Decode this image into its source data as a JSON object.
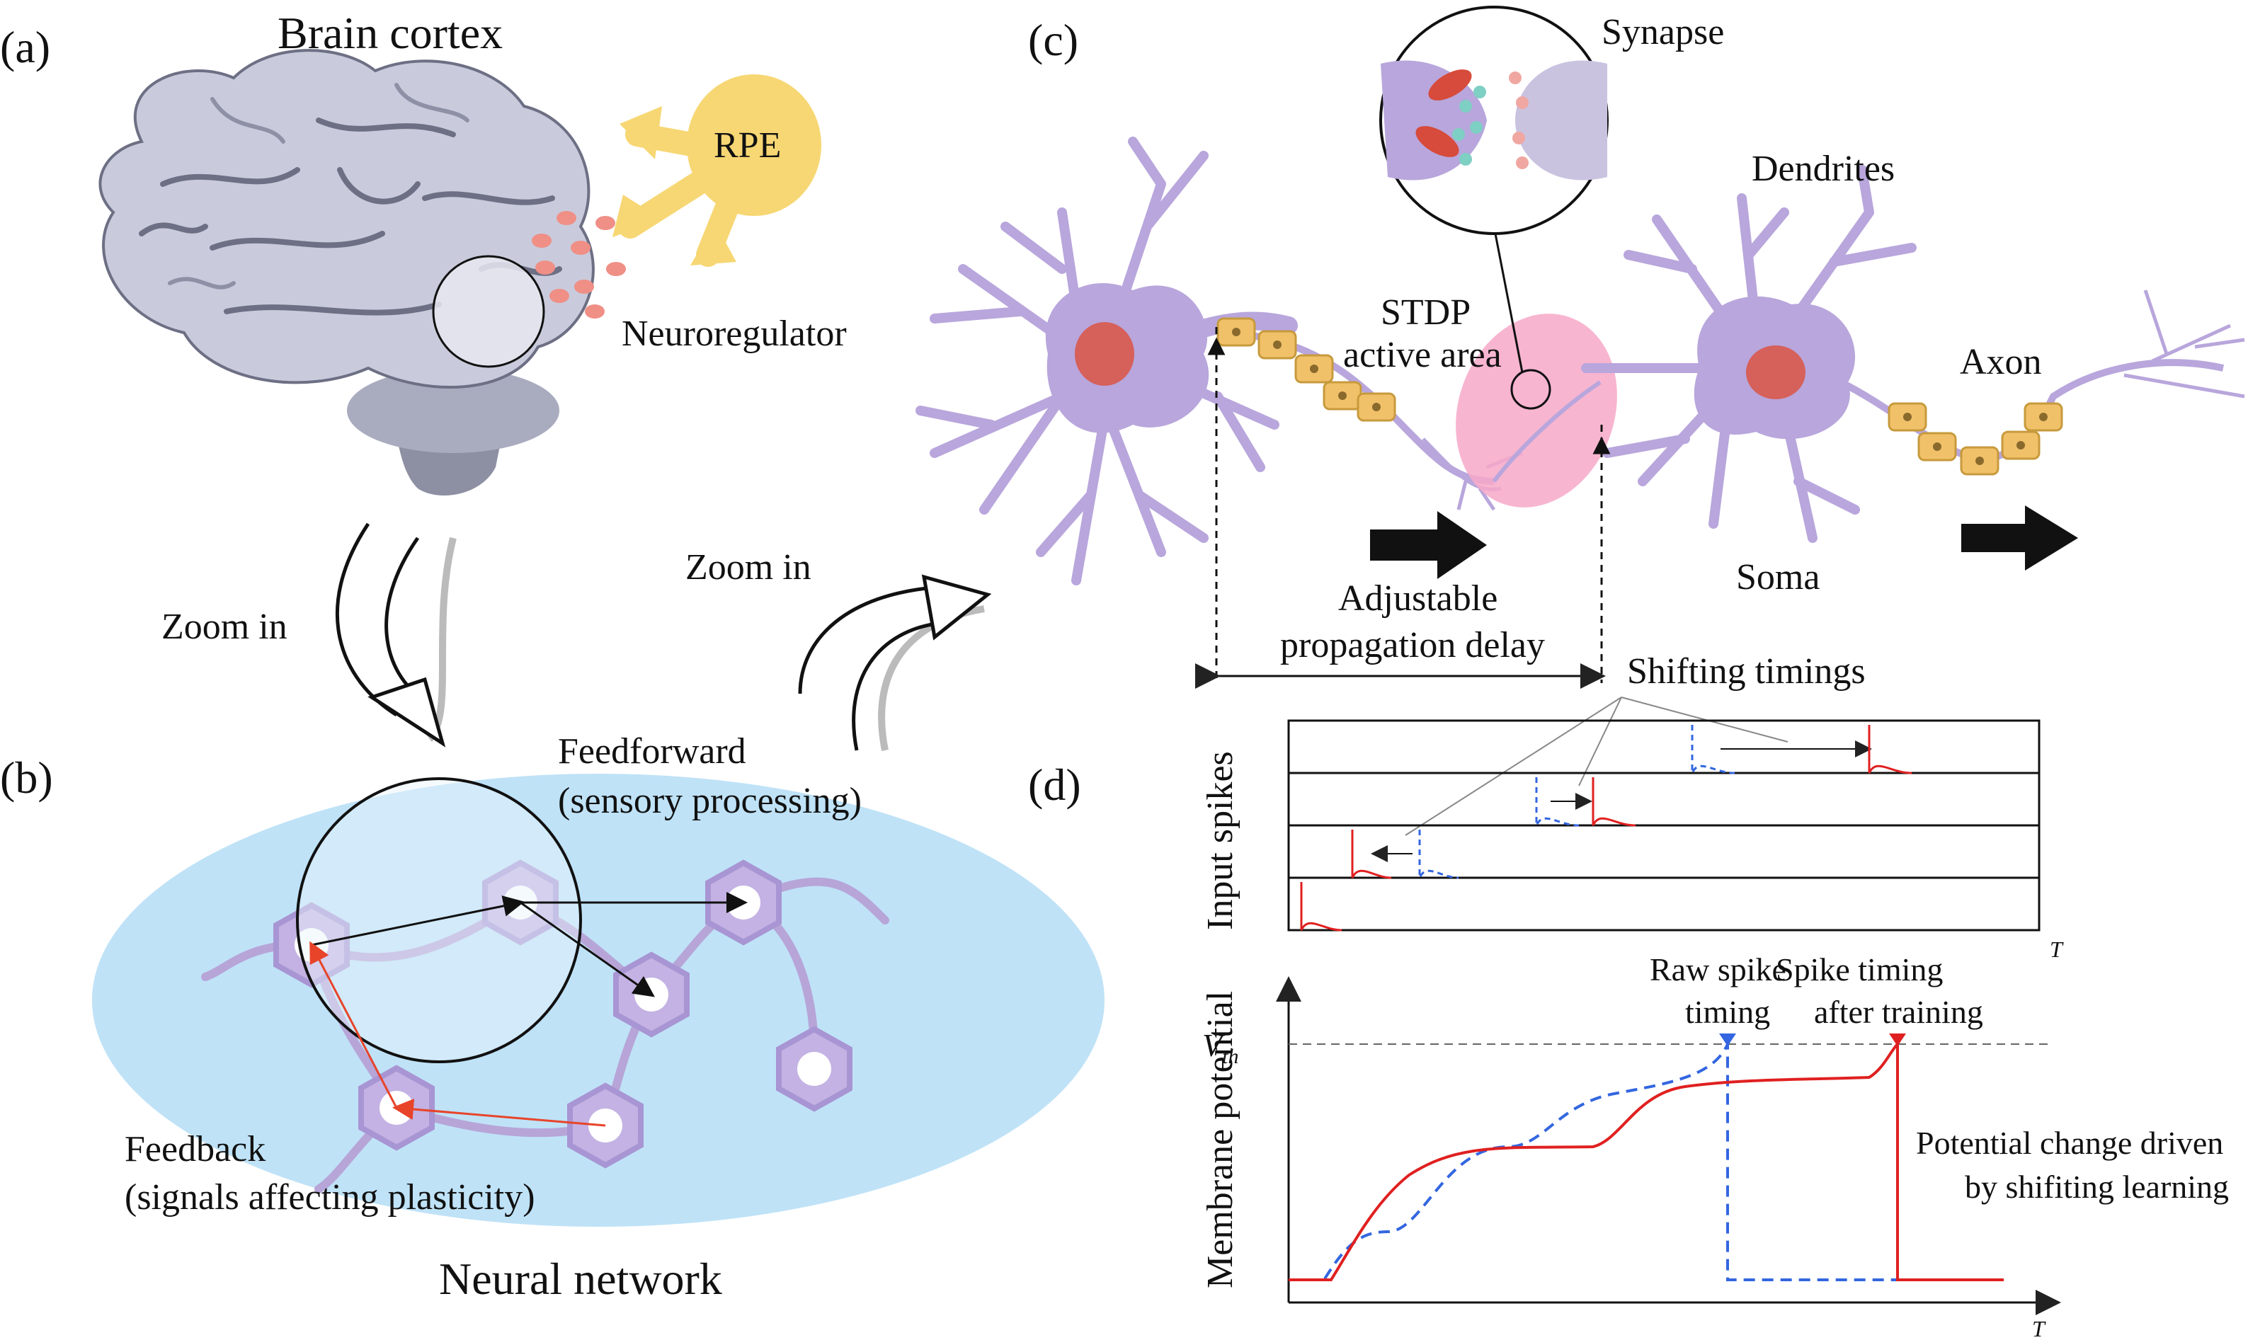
{
  "panels": {
    "a": {
      "tag": "(a)",
      "title": "Brain cortex",
      "rpe": "RPE",
      "neuroregulator": "Neuroregulator",
      "zoom_in": "Zoom in"
    },
    "b": {
      "tag": "(b)",
      "feedforward_line1": "Feedforward",
      "feedforward_line2": "(sensory processing)",
      "feedback_line1": "Feedback",
      "feedback_line2": "(signals affecting plasticity)",
      "title": "Neural network",
      "zoom_in": "Zoom in"
    },
    "c": {
      "tag": "(c)",
      "synapse": "Synapse",
      "dendrites": "Dendrites",
      "stdp_line1": "STDP",
      "stdp_line2": "active area",
      "axon": "Axon",
      "soma": "Soma",
      "delay_line1": "Adjustable",
      "delay_line2": "propagation delay"
    },
    "d": {
      "tag": "(d)",
      "shifting_timings": "Shifting timings",
      "input_spikes": "Input spikes",
      "t_label": "T",
      "raw_line1": "Raw spike",
      "raw_line2": "timing",
      "after_line1": "Spike timing",
      "after_line2": "after training",
      "vth": "V",
      "vth_sub": "th",
      "membrane": "Membrane potential",
      "pot_line1": "Potential change driven",
      "pot_line2": "by shifiting learning"
    }
  },
  "colors": {
    "neuron": "#b8a6dc",
    "nucleus": "#d6605a",
    "myelin": "#f1c16a",
    "rpe": "#f7d774",
    "network_bg": "#bfe2f7",
    "stdp": "#f7a8c8",
    "spike_red": "#e02020",
    "spike_blue": "#3366e0",
    "brain": "#c9cbdc"
  }
}
